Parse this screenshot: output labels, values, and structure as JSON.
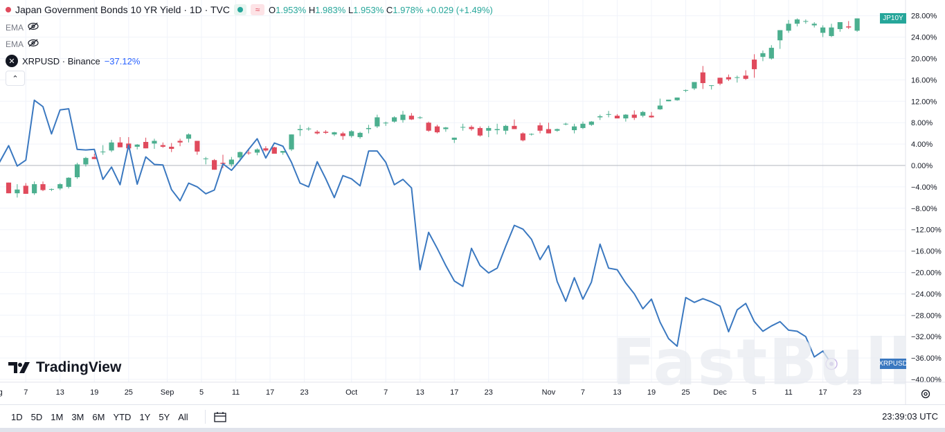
{
  "header": {
    "symbol_title": "Japan Government Bonds 10 YR Yield · 1D · TVC",
    "open_label": "O",
    "open": "1.953%",
    "high_label": "H",
    "high": "1.983%",
    "low_label": "L",
    "low": "1.953%",
    "close_label": "C",
    "close": "1.978%",
    "change": "+0.029 (+1.49%)"
  },
  "indicators": [
    {
      "label": "EMA"
    },
    {
      "label": "EMA"
    }
  ],
  "compare": {
    "label": "XRPUSD · Binance",
    "value": "−37.12%"
  },
  "branding": {
    "logo_text": "TradingView",
    "watermark": "FastBull"
  },
  "time_ranges": [
    "1D",
    "5D",
    "1M",
    "3M",
    "6M",
    "YTD",
    "1Y",
    "5Y",
    "All"
  ],
  "clock": "23:39:03 UTC",
  "colors": {
    "up": "#4caf8f",
    "down": "#e04a5c",
    "compare_line": "#3a78c0",
    "jp_badge": "#26a69a",
    "xrp_badge": "#3a78c0"
  },
  "icons": {
    "eye": "eye-off-icon",
    "collapse": "chevron-up-icon",
    "calendar": "calendar-range-icon",
    "settings": "gear-icon",
    "xrp": "xrp-logo-icon"
  },
  "chart_data": {
    "type": "line",
    "note_scale": "percent change",
    "y_axis": {
      "ticks": [
        "28.00%",
        "24.00%",
        "20.00%",
        "16.00%",
        "12.00%",
        "8.00%",
        "4.00%",
        "0.00%",
        "−4.00%",
        "−8.00%",
        "−12.00%",
        "−16.00%",
        "−20.00%",
        "−24.00%",
        "−28.00%",
        "−32.00%",
        "−36.00%",
        "−40.00%"
      ],
      "ylim": [
        -40.5,
        29
      ]
    },
    "x_axis": {
      "ticks": [
        {
          "label": "ug",
          "i": -1.2
        },
        {
          "label": "7",
          "i": 2
        },
        {
          "label": "13",
          "i": 6
        },
        {
          "label": "19",
          "i": 10
        },
        {
          "label": "25",
          "i": 14
        },
        {
          "label": "Sep",
          "i": 18.5
        },
        {
          "label": "5",
          "i": 22.5
        },
        {
          "label": "11",
          "i": 26.5
        },
        {
          "label": "17",
          "i": 30.5
        },
        {
          "label": "23",
          "i": 34.5
        },
        {
          "label": "Oct",
          "i": 40
        },
        {
          "label": "7",
          "i": 44
        },
        {
          "label": "13",
          "i": 48
        },
        {
          "label": "17",
          "i": 52
        },
        {
          "label": "23",
          "i": 56
        },
        {
          "label": "Nov",
          "i": 63
        },
        {
          "label": "7",
          "i": 67
        },
        {
          "label": "13",
          "i": 71
        },
        {
          "label": "19",
          "i": 75
        },
        {
          "label": "25",
          "i": 79
        },
        {
          "label": "Dec",
          "i": 83
        },
        {
          "label": "5",
          "i": 87
        },
        {
          "label": "11",
          "i": 91
        },
        {
          "label": "17",
          "i": 95
        },
        {
          "label": "23",
          "i": 99
        }
      ]
    },
    "series": [
      {
        "name": "Japan Government Bonds 10 YR Yield",
        "kind": "candlestick",
        "candles": [
          [
            -3.2,
            -5.2,
            -3.2,
            -5.2
          ],
          [
            -5.2,
            -6.0,
            -3.5,
            -4.5
          ],
          [
            -3.8,
            -5.0,
            -3.3,
            -5.3
          ],
          [
            -5.2,
            -5.5,
            -3.0,
            -3.5
          ],
          [
            -3.5,
            -4.8,
            -3.0,
            -4.6
          ],
          [
            -4.5,
            -4.8,
            -4.3,
            -4.4
          ],
          [
            -4.3,
            -4.6,
            -3.3,
            -3.5
          ],
          [
            -4.0,
            -4.3,
            -2.2,
            -2.3
          ],
          [
            -2.2,
            -2.5,
            0.5,
            0.2
          ],
          [
            0.2,
            -0.2,
            1.6,
            1.4
          ],
          [
            1.6,
            1.2,
            2.2,
            1.2
          ],
          [
            2.6,
            2.0,
            3.8,
            2.6
          ],
          [
            2.8,
            2.5,
            4.8,
            4.3
          ],
          [
            4.3,
            3.5,
            5.3,
            3.4
          ],
          [
            4.1,
            3.0,
            5.3,
            3.2
          ],
          [
            3.5,
            3.0,
            4.0,
            3.9
          ],
          [
            4.4,
            3.2,
            5.2,
            3.2
          ],
          [
            4.1,
            3.1,
            5.0,
            4.6
          ],
          [
            3.8,
            3.3,
            4.3,
            3.5
          ],
          [
            3.5,
            2.5,
            4.2,
            3.1
          ],
          [
            4.6,
            3.6,
            5.0,
            4.3
          ],
          [
            5.0,
            4.3,
            6.0,
            5.8
          ],
          [
            4.6,
            2.0,
            4.6,
            2.6
          ],
          [
            1.2,
            0.2,
            1.6,
            1.3
          ],
          [
            1.0,
            -0.8,
            1.2,
            -0.8
          ],
          [
            0.5,
            -0.5,
            2.0,
            0.3
          ],
          [
            0.2,
            -0.2,
            1.6,
            1.1
          ],
          [
            1.5,
            0.8,
            2.6,
            2.5
          ],
          [
            2.4,
            2.0,
            3.2,
            2.3
          ],
          [
            2.4,
            1.9,
            3.2,
            3.0
          ],
          [
            3.2,
            2.6,
            3.6,
            2.8
          ],
          [
            3.4,
            2.2,
            3.5,
            2.2
          ],
          [
            2.4,
            2.0,
            2.7,
            2.7
          ],
          [
            3.0,
            2.7,
            4.5,
            5.8
          ],
          [
            6.6,
            5.5,
            7.6,
            6.8
          ],
          [
            6.8,
            6.5,
            7.2,
            6.9
          ],
          [
            6.3,
            5.8,
            6.6,
            6.0
          ],
          [
            6.3,
            5.9,
            6.6,
            6.1
          ],
          [
            5.8,
            5.5,
            6.3,
            6.2
          ],
          [
            6.0,
            4.8,
            6.3,
            5.5
          ],
          [
            5.5,
            5.2,
            6.6,
            6.4
          ],
          [
            5.3,
            5.0,
            6.3,
            6.1
          ],
          [
            6.8,
            6.0,
            7.6,
            7.0
          ],
          [
            7.3,
            7.0,
            9.5,
            9.0
          ],
          [
            8.0,
            7.4,
            8.2,
            8.0
          ],
          [
            8.2,
            8.0,
            9.2,
            9.0
          ],
          [
            8.5,
            8.0,
            10.2,
            9.5
          ],
          [
            9.3,
            8.5,
            9.8,
            8.6
          ],
          [
            9.0,
            8.7,
            9.2,
            9.0
          ],
          [
            8.0,
            6.3,
            8.2,
            6.5
          ],
          [
            7.3,
            6.0,
            7.6,
            6.2
          ],
          [
            6.8,
            6.3,
            7.2,
            7.1
          ],
          [
            4.8,
            4.2,
            5.2,
            5.2
          ],
          [
            7.2,
            6.5,
            7.8,
            7.2
          ],
          [
            7.2,
            6.5,
            7.5,
            6.8
          ],
          [
            7.0,
            5.4,
            7.3,
            5.6
          ],
          [
            6.5,
            5.3,
            7.4,
            7.0
          ],
          [
            6.6,
            5.8,
            7.8,
            6.8
          ],
          [
            6.5,
            5.8,
            7.6,
            7.4
          ],
          [
            7.4,
            7.1,
            8.6,
            6.8
          ],
          [
            6.0,
            4.5,
            6.2,
            4.7
          ],
          [
            5.8,
            5.6,
            6.0,
            5.9
          ],
          [
            7.5,
            6.0,
            8.0,
            6.5
          ],
          [
            6.8,
            6.0,
            8.0,
            6.0
          ],
          [
            6.5,
            6.3,
            6.9,
            6.8
          ],
          [
            7.8,
            7.5,
            8.0,
            7.8
          ],
          [
            6.6,
            6.0,
            7.8,
            7.3
          ],
          [
            7.0,
            6.8,
            8.2,
            7.8
          ],
          [
            7.6,
            7.4,
            8.3,
            8.2
          ],
          [
            9.0,
            8.5,
            9.5,
            9.2
          ],
          [
            9.5,
            9.0,
            10.2,
            9.6
          ],
          [
            9.3,
            9.1,
            9.6,
            8.8
          ],
          [
            8.8,
            8.2,
            9.6,
            9.5
          ],
          [
            9.5,
            8.5,
            10.3,
            8.9
          ],
          [
            9.3,
            9.0,
            10.2,
            10.0
          ],
          [
            9.3,
            8.9,
            10.0,
            9.0
          ],
          [
            10.5,
            10.4,
            12.5,
            11.2
          ],
          [
            12.0,
            12.0,
            12.2,
            12.3
          ],
          [
            12.2,
            12.1,
            12.7,
            12.7
          ],
          [
            14.0,
            13.7,
            14.2,
            14.1
          ],
          [
            14.4,
            14.1,
            15.5,
            15.6
          ],
          [
            17.4,
            14.3,
            18.6,
            15.4
          ],
          [
            15.0,
            14.2,
            14.7,
            15.0
          ],
          [
            16.4,
            15.0,
            16.2,
            15.3
          ],
          [
            16.5,
            15.8,
            17.0,
            16.1
          ],
          [
            16.5,
            15.5,
            16.8,
            16.5
          ],
          [
            16.8,
            16.0,
            17.8,
            16.2
          ],
          [
            19.8,
            16.4,
            20.8,
            18.0
          ],
          [
            20.3,
            19.5,
            21.5,
            21.0
          ],
          [
            20.0,
            19.8,
            22.5,
            22.0
          ],
          [
            23.4,
            21.8,
            25.2,
            25.3
          ],
          [
            25.2,
            24.8,
            27.2,
            26.5
          ],
          [
            26.5,
            26.0,
            27.5,
            27.3
          ],
          [
            27.0,
            26.5,
            27.3,
            27.0
          ],
          [
            26.2,
            25.8,
            26.8,
            26.5
          ],
          [
            24.8,
            24.0,
            26.2,
            25.8
          ],
          [
            24.2,
            24.0,
            26.5,
            25.8
          ],
          [
            25.5,
            25.0,
            26.3,
            26.8
          ],
          [
            26.0,
            25.5,
            27.0,
            25.8
          ],
          [
            25.2,
            25.0,
            27.0,
            27.5
          ]
        ]
      },
      {
        "name": "XRPUSD · Binance",
        "kind": "line",
        "points": [
          [
            -1.2,
            0.2
          ],
          [
            0.0,
            3.7
          ],
          [
            1.0,
            -0.1
          ],
          [
            2.0,
            1.0
          ],
          [
            3.0,
            12.2
          ],
          [
            4.0,
            11.0
          ],
          [
            5.0,
            5.9
          ],
          [
            6.0,
            10.4
          ],
          [
            7.0,
            10.6
          ],
          [
            8.0,
            3.0
          ],
          [
            9.0,
            2.9
          ],
          [
            10.0,
            3.0
          ],
          [
            11.0,
            -2.6
          ],
          [
            12.0,
            -0.3
          ],
          [
            13.0,
            -3.6
          ],
          [
            14.0,
            3.8
          ],
          [
            15.0,
            -3.5
          ],
          [
            16.0,
            1.6
          ],
          [
            17.0,
            0.2
          ],
          [
            18.0,
            0.1
          ],
          [
            19.0,
            -4.5
          ],
          [
            20.0,
            -6.6
          ],
          [
            21.0,
            -3.3
          ],
          [
            22.0,
            -4.0
          ],
          [
            23.0,
            -5.3
          ],
          [
            24.0,
            -4.6
          ],
          [
            25.0,
            0.3
          ],
          [
            26.0,
            -0.9
          ],
          [
            27.0,
            1.0
          ],
          [
            28.0,
            3.0
          ],
          [
            29.0,
            5.0
          ],
          [
            30.0,
            1.4
          ],
          [
            31.0,
            4.2
          ],
          [
            32.0,
            3.6
          ],
          [
            33.0,
            0.6
          ],
          [
            34.0,
            -3.3
          ],
          [
            35.0,
            -4.0
          ],
          [
            36.0,
            0.7
          ],
          [
            37.0,
            -2.5
          ],
          [
            38.0,
            -6.0
          ],
          [
            39.0,
            -1.9
          ],
          [
            40.0,
            -2.5
          ],
          [
            41.0,
            -3.8
          ],
          [
            42.0,
            2.7
          ],
          [
            43.0,
            2.7
          ],
          [
            44.0,
            0.6
          ],
          [
            45.0,
            -3.6
          ],
          [
            46.0,
            -2.6
          ],
          [
            47.0,
            -4.2
          ],
          [
            48.0,
            -19.5
          ],
          [
            49.0,
            -12.5
          ],
          [
            50.0,
            -15.5
          ],
          [
            51.0,
            -18.7
          ],
          [
            52.0,
            -21.6
          ],
          [
            53.0,
            -22.6
          ],
          [
            54.0,
            -15.5
          ],
          [
            55.0,
            -18.7
          ],
          [
            56.0,
            -20.1
          ],
          [
            57.0,
            -19.2
          ],
          [
            58.0,
            -15.1
          ],
          [
            59.0,
            -11.2
          ],
          [
            60.0,
            -11.9
          ],
          [
            61.0,
            -13.8
          ],
          [
            62.0,
            -17.6
          ],
          [
            63.0,
            -15.0
          ],
          [
            64.0,
            -21.7
          ],
          [
            65.0,
            -25.4
          ],
          [
            66.0,
            -21.0
          ],
          [
            67.0,
            -25.0
          ],
          [
            68.0,
            -21.8
          ],
          [
            69.0,
            -14.7
          ],
          [
            70.0,
            -19.2
          ],
          [
            71.0,
            -19.5
          ],
          [
            72.0,
            -22.0
          ],
          [
            73.0,
            -24.0
          ],
          [
            74.0,
            -26.8
          ],
          [
            75.0,
            -25.0
          ],
          [
            76.0,
            -29.3
          ],
          [
            77.0,
            -32.4
          ],
          [
            78.0,
            -33.8
          ],
          [
            79.0,
            -24.7
          ],
          [
            80.0,
            -25.6
          ],
          [
            81.0,
            -24.9
          ],
          [
            82.0,
            -25.5
          ],
          [
            83.0,
            -26.3
          ],
          [
            84.0,
            -31.1
          ],
          [
            85.0,
            -27.0
          ],
          [
            86.0,
            -25.8
          ],
          [
            87.0,
            -29.2
          ],
          [
            88.0,
            -31.0
          ],
          [
            89.0,
            -30.0
          ],
          [
            90.0,
            -29.2
          ],
          [
            91.0,
            -30.8
          ],
          [
            92.0,
            -31.0
          ],
          [
            93.0,
            -32.0
          ],
          [
            94.0,
            -35.8
          ],
          [
            95.0,
            -34.7
          ],
          [
            96.0,
            -37.1
          ]
        ]
      }
    ],
    "last_values": {
      "jp": 27.5,
      "xrp": -37.12
    },
    "badges": {
      "jp": "JP10Y",
      "xrp": "XRPUSD"
    },
    "grid": true,
    "zero_line": true
  }
}
